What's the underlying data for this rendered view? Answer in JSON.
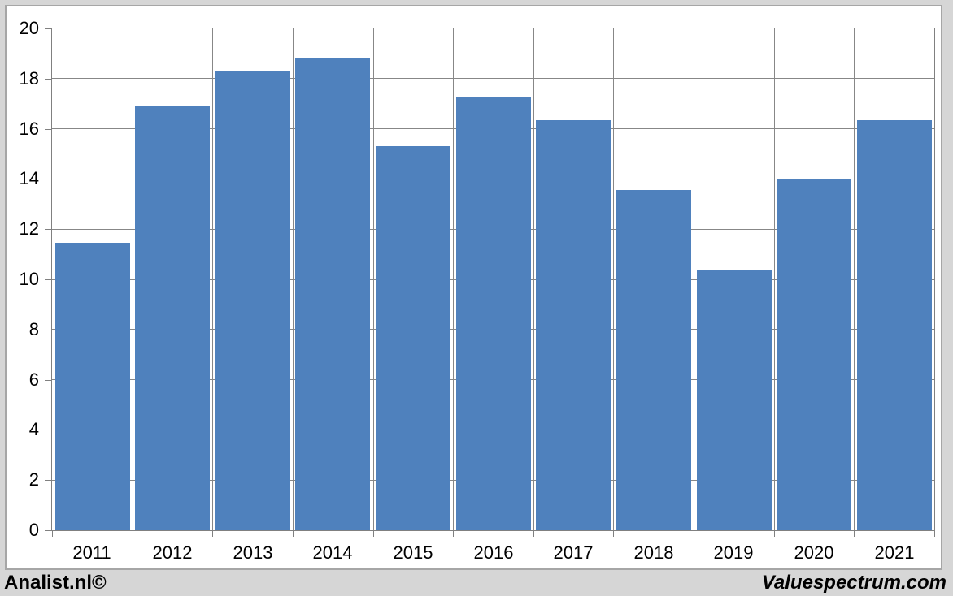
{
  "page": {
    "background_color": "#d6d6d6",
    "frame_border_color": "#a6a6a6"
  },
  "footer": {
    "left_text": "Analist.nl©",
    "right_text": "Valuespectrum.com"
  },
  "chart_data": {
    "type": "bar",
    "categories": [
      "2011",
      "2012",
      "2013",
      "2014",
      "2015",
      "2016",
      "2017",
      "2018",
      "2019",
      "2020",
      "2021"
    ],
    "values": [
      11.45,
      16.9,
      18.3,
      18.85,
      15.3,
      17.25,
      16.35,
      13.55,
      10.35,
      14.0,
      16.35
    ],
    "title": "",
    "xlabel": "",
    "ylabel": "",
    "ylim": [
      0,
      20
    ],
    "ytick_step": 2,
    "grid": true,
    "legend": "none",
    "bar_color": "#4f81bd",
    "gridline_color": "#878787",
    "axis_color": "#808080",
    "label_color": "#000000"
  }
}
